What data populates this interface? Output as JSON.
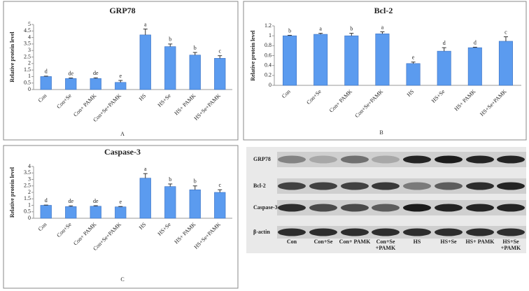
{
  "chart_data": [
    {
      "type": "bar",
      "title": "GRP78",
      "panel": "A",
      "y_label": "Relative protein level",
      "categories": [
        "Con",
        "Con+Se",
        "Con+ PAMK",
        "Con+Se+PAMK",
        "HS",
        "HS+Se",
        "HS+ PAMK",
        "HS+Se+PAMK"
      ],
      "values": [
        1.0,
        0.85,
        0.85,
        0.55,
        4.2,
        3.3,
        2.65,
        2.4
      ],
      "errors": [
        0.03,
        0.04,
        0.05,
        0.15,
        0.45,
        0.2,
        0.2,
        0.2
      ],
      "bar_labels": [
        "d",
        "de",
        "de",
        "e",
        "a",
        "b",
        "b",
        "c"
      ],
      "color": "#5b9bef",
      "ylim": [
        0,
        5
      ],
      "yticks": [
        0,
        0.5,
        1,
        1.5,
        2,
        2.5,
        3,
        3.5,
        4,
        4.5,
        5
      ],
      "grid": false
    },
    {
      "type": "bar",
      "title": "Bcl-2",
      "panel": "B",
      "y_label": "Relative protein level",
      "categories": [
        "Con",
        "Con+Se",
        "Con+ PAMK",
        "Con+Se+PAMK",
        "HS",
        "HS+Se",
        "HS+ PAMK",
        "HS+Se+PAMK"
      ],
      "values": [
        1.0,
        1.03,
        1.0,
        1.04,
        0.44,
        0.69,
        0.76,
        0.89
      ],
      "errors": [
        0.01,
        0.02,
        0.05,
        0.04,
        0.03,
        0.07,
        0.01,
        0.09
      ],
      "bar_labels": [
        "b",
        "a",
        "b",
        "a",
        "e",
        "d",
        "d",
        "c"
      ],
      "color": "#5b9bef",
      "ylim": [
        0,
        1.2
      ],
      "yticks": [
        0,
        0.2,
        0.4,
        0.6,
        0.8,
        1,
        1.2
      ],
      "grid": false
    },
    {
      "type": "bar",
      "title": "Caspase-3",
      "panel": "C",
      "y_label": "Relative protein level",
      "categories": [
        "Con",
        "Con+Se",
        "Con+ PAMK",
        "Con+Se+PAMK",
        "HS",
        "HS+Se",
        "HS+ PAMK",
        "HS+Se+PAMK"
      ],
      "values": [
        1.0,
        0.9,
        0.93,
        0.88,
        3.1,
        2.45,
        2.2,
        2.0
      ],
      "errors": [
        0.02,
        0.06,
        0.04,
        0.03,
        0.35,
        0.2,
        0.3,
        0.2
      ],
      "bar_labels": [
        "d",
        "de",
        "de",
        "e",
        "a",
        "b",
        "b",
        "c"
      ],
      "color": "#5b9bef",
      "ylim": [
        0,
        4
      ],
      "yticks": [
        0,
        0.5,
        1,
        1.5,
        2,
        2.5,
        3,
        3.5,
        4
      ],
      "grid": false
    }
  ],
  "blot": {
    "rows": [
      "GRP78",
      "Bcl-2",
      "Caspase-3",
      "β-actin"
    ],
    "lanes": [
      [
        "Con"
      ],
      [
        "Con+Se"
      ],
      [
        "Con+ PAMK"
      ],
      [
        "Con+Se",
        "+PAMK"
      ],
      [
        "HS"
      ],
      [
        "HS+Se"
      ],
      [
        "HS+ PAMK"
      ],
      [
        "HS+Se",
        "+PAMK"
      ]
    ]
  }
}
